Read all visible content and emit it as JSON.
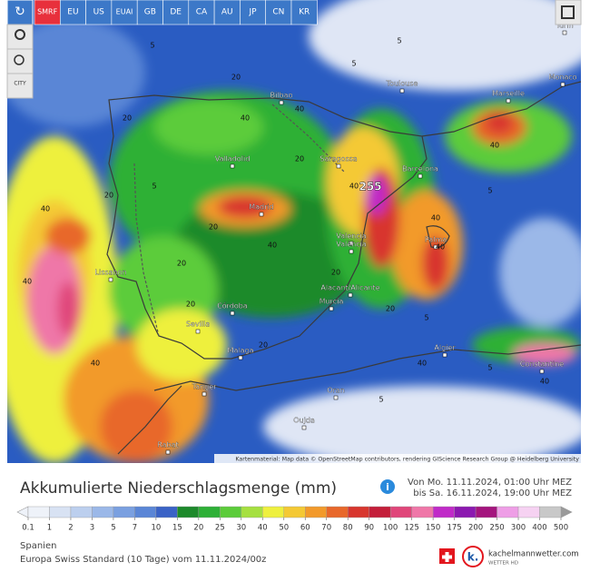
{
  "toolbar": {
    "models": [
      "SMRF",
      "EU",
      "US",
      "EUAI",
      "GB",
      "DE",
      "CA",
      "AU",
      "JP",
      "CN",
      "KR"
    ],
    "city_button": "CITY"
  },
  "map": {
    "cities": [
      "Turin",
      "Toulouse",
      "Monaco",
      "Marseille",
      "Bilbao",
      "Valladolid",
      "Saragossa",
      "Barcelona",
      "Madrid",
      "Valencia",
      "València",
      "Palma",
      "Lissabon",
      "Alacant/Alicante",
      "Murcia",
      "Córdoba",
      "Sevilla",
      "Malaga",
      "Tanger",
      "Algier",
      "Constantine",
      "Oran",
      "Oujda",
      "Rabat"
    ],
    "contour_labels": [
      "5",
      "5",
      "20",
      "40",
      "20",
      "40",
      "5",
      "20",
      "40",
      "20",
      "40",
      "20",
      "5",
      "40",
      "40",
      "20",
      "40",
      "20",
      "5",
      "40",
      "20",
      "40",
      "5",
      "40",
      "20",
      "40",
      "5",
      "20",
      "40",
      "5"
    ],
    "max_label": "255",
    "attribution": "Kartenmaterial: Map data © OpenStreetMap contributors, rendering GIScience Research Group @ Heidelberg University"
  },
  "legend": {
    "title": "Akkumulierte Niederschlagsmenge (mm)",
    "period_from": "Von Mo. 11.11.2024, 01:00 Uhr MEZ",
    "period_to": "bis Sa. 16.11.2024, 19:00 Uhr MEZ",
    "values": [
      "0.1",
      "1",
      "2",
      "3",
      "5",
      "7",
      "10",
      "15",
      "20",
      "25",
      "30",
      "40",
      "50",
      "60",
      "70",
      "80",
      "90",
      "100",
      "125",
      "150",
      "175",
      "200",
      "250",
      "300",
      "400",
      "500"
    ],
    "colors": [
      "#eef2f9",
      "#d8e2f3",
      "#bccfee",
      "#9bb8e8",
      "#7aa0e0",
      "#5a86d6",
      "#3a63c6",
      "#1c8a2a",
      "#2db036",
      "#5ccc3a",
      "#a6e040",
      "#eef03e",
      "#f4c934",
      "#f29a2a",
      "#e8682a",
      "#d8362e",
      "#c41e3a",
      "#e0467a",
      "#ef77a8",
      "#c02ac8",
      "#8c18b0",
      "#a4147e",
      "#ee9ee6",
      "#f6d2f2",
      "#c8c8c8"
    ]
  },
  "footer": {
    "region": "Spanien",
    "model_run": "Europa Swiss Standard (10 Tage) vom 11.11.2024/00z",
    "brand": "kachelmannwetter.com",
    "brand_sub": "WETTER HD"
  }
}
